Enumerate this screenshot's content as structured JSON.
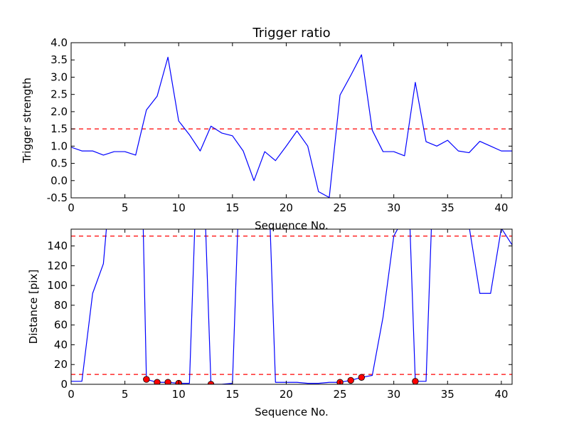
{
  "chart_data": [
    {
      "type": "line",
      "title": "Trigger ratio",
      "xlabel": "Sequence No.",
      "ylabel": "Trigger strength",
      "xlim": [
        0,
        41
      ],
      "ylim": [
        -0.5,
        4.0
      ],
      "x_ticks": [
        0,
        5,
        10,
        15,
        20,
        25,
        30,
        35,
        40
      ],
      "y_ticks": [
        -0.5,
        0.0,
        0.5,
        1.0,
        1.5,
        2.0,
        2.5,
        3.0,
        3.5,
        4.0
      ],
      "grid": false,
      "series": [
        {
          "color": "#0000ff",
          "style": "solid",
          "x": [
            0,
            1,
            2,
            3,
            4,
            5,
            6,
            7,
            8,
            9,
            10,
            11,
            12,
            13,
            14,
            15,
            16,
            17,
            18,
            19,
            20,
            21,
            22,
            23,
            24,
            25,
            26,
            27,
            28,
            29,
            30,
            31,
            32,
            33,
            34,
            35,
            36,
            37,
            38,
            39,
            40,
            41
          ],
          "values": [
            0.97,
            0.86,
            0.86,
            0.74,
            0.84,
            0.84,
            0.74,
            2.05,
            2.45,
            3.58,
            1.73,
            1.33,
            0.86,
            1.58,
            1.38,
            1.3,
            0.86,
            0.0,
            0.84,
            0.58,
            1.0,
            1.44,
            1.0,
            -0.32,
            -0.49,
            2.48,
            3.05,
            3.65,
            1.46,
            0.84,
            0.84,
            0.72,
            2.85,
            1.13,
            1.0,
            1.17,
            0.86,
            0.81,
            1.14,
            1.0,
            0.86,
            0.86
          ]
        }
      ],
      "reference_lines": [
        {
          "y": 1.5,
          "color": "#ff0000",
          "style": "dashed"
        }
      ]
    },
    {
      "type": "line",
      "title": "",
      "xlabel": "Sequence No.",
      "ylabel": "Distance [pix]",
      "xlim": [
        0,
        41
      ],
      "ylim": [
        0,
        157
      ],
      "x_ticks": [
        0,
        5,
        10,
        15,
        20,
        25,
        30,
        35,
        40
      ],
      "y_ticks": [
        0,
        20,
        40,
        60,
        80,
        100,
        120,
        140
      ],
      "grid": false,
      "series": [
        {
          "color": "#0000ff",
          "style": "solid",
          "x": [
            0,
            1,
            2,
            3,
            3.3,
            6.7,
            7,
            8,
            9,
            10,
            11,
            11.5,
            12.5,
            13,
            14,
            15,
            15.5,
            18.5,
            19,
            20,
            21,
            22,
            23,
            24,
            25,
            26,
            27,
            28,
            29,
            30,
            30.5,
            31.5,
            32,
            33,
            33.5,
            37,
            38,
            39,
            40,
            41
          ],
          "values": [
            3,
            3,
            92,
            122,
            160,
            160,
            5,
            2,
            2,
            1,
            1,
            160,
            160,
            0,
            0,
            1,
            160,
            160,
            2,
            2,
            2,
            1,
            1,
            2,
            2,
            4,
            7,
            9,
            68,
            150,
            160,
            160,
            3,
            3,
            160,
            160,
            92,
            92,
            158,
            141
          ]
        },
        {
          "color": "#ff0000",
          "style": "markers",
          "x": [
            7,
            8,
            9,
            10,
            13,
            25,
            26,
            27,
            32
          ],
          "values": [
            5,
            2,
            2,
            1,
            0,
            2,
            4,
            7,
            3
          ]
        }
      ],
      "reference_lines": [
        {
          "y": 10,
          "color": "#ff0000",
          "style": "dashed"
        },
        {
          "y": 150,
          "color": "#ff0000",
          "style": "dashed"
        }
      ]
    }
  ]
}
